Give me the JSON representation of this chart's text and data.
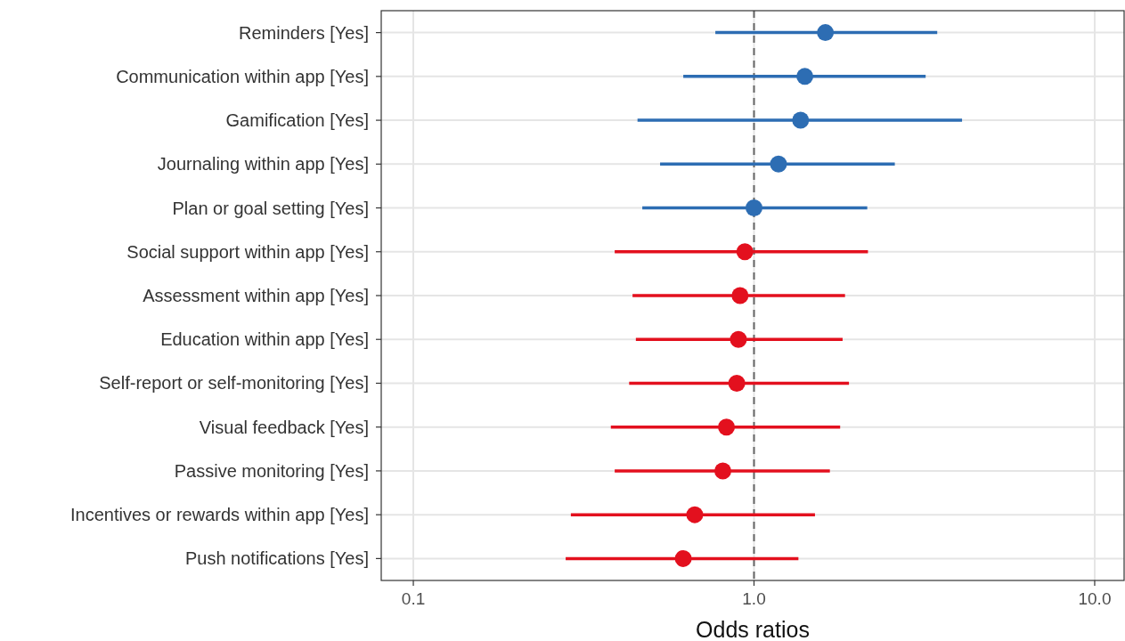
{
  "chart_data": {
    "type": "scatter",
    "orientation": "horizontal",
    "xlabel": "Odds ratios",
    "log": "x",
    "grid": true,
    "marker": "circle",
    "categories": [
      "Reminders [Yes]",
      "Communication within app [Yes]",
      "Gamification [Yes]",
      "Journaling within app [Yes]",
      "Plan or goal setting [Yes]",
      "Social support within app [Yes]",
      "Assessment within app [Yes]",
      "Education within app [Yes]",
      "Self-report or self-monitoring [Yes]",
      "Visual feedback [Yes]",
      "Passive monitoring [Yes]",
      "Incentives or rewards within app [Yes]",
      "Push notifications [Yes]"
    ],
    "values": [
      1.62,
      1.41,
      1.37,
      1.18,
      1.0,
      0.94,
      0.91,
      0.9,
      0.89,
      0.83,
      0.81,
      0.67,
      0.62
    ],
    "errors": [
      [
        0.77,
        3.45
      ],
      [
        0.62,
        3.19
      ],
      [
        0.455,
        4.08
      ],
      [
        0.53,
        2.59
      ],
      [
        0.47,
        2.15
      ],
      [
        0.39,
        2.16
      ],
      [
        0.44,
        1.85
      ],
      [
        0.45,
        1.82
      ],
      [
        0.43,
        1.9
      ],
      [
        0.38,
        1.79
      ],
      [
        0.39,
        1.67
      ],
      [
        0.29,
        1.51
      ],
      [
        0.28,
        1.35
      ]
    ],
    "colors": [
      "#2d6db3",
      "#2d6db3",
      "#2d6db3",
      "#2d6db3",
      "#2d6db3",
      "#e3101e",
      "#e3101e",
      "#e3101e",
      "#e3101e",
      "#e3101e",
      "#e3101e",
      "#e3101e",
      "#e3101e"
    ],
    "xlim": [
      0.0805,
      12.2
    ],
    "xticks": [
      {
        "value": 0.1,
        "label": "0.1"
      },
      {
        "value": 1,
        "label": "1.0"
      },
      {
        "value": 10,
        "label": "10.0"
      }
    ],
    "ref_lines": [
      {
        "axis": "x",
        "value": 1,
        "color": "#666666",
        "line_style": "dashed"
      }
    ]
  }
}
